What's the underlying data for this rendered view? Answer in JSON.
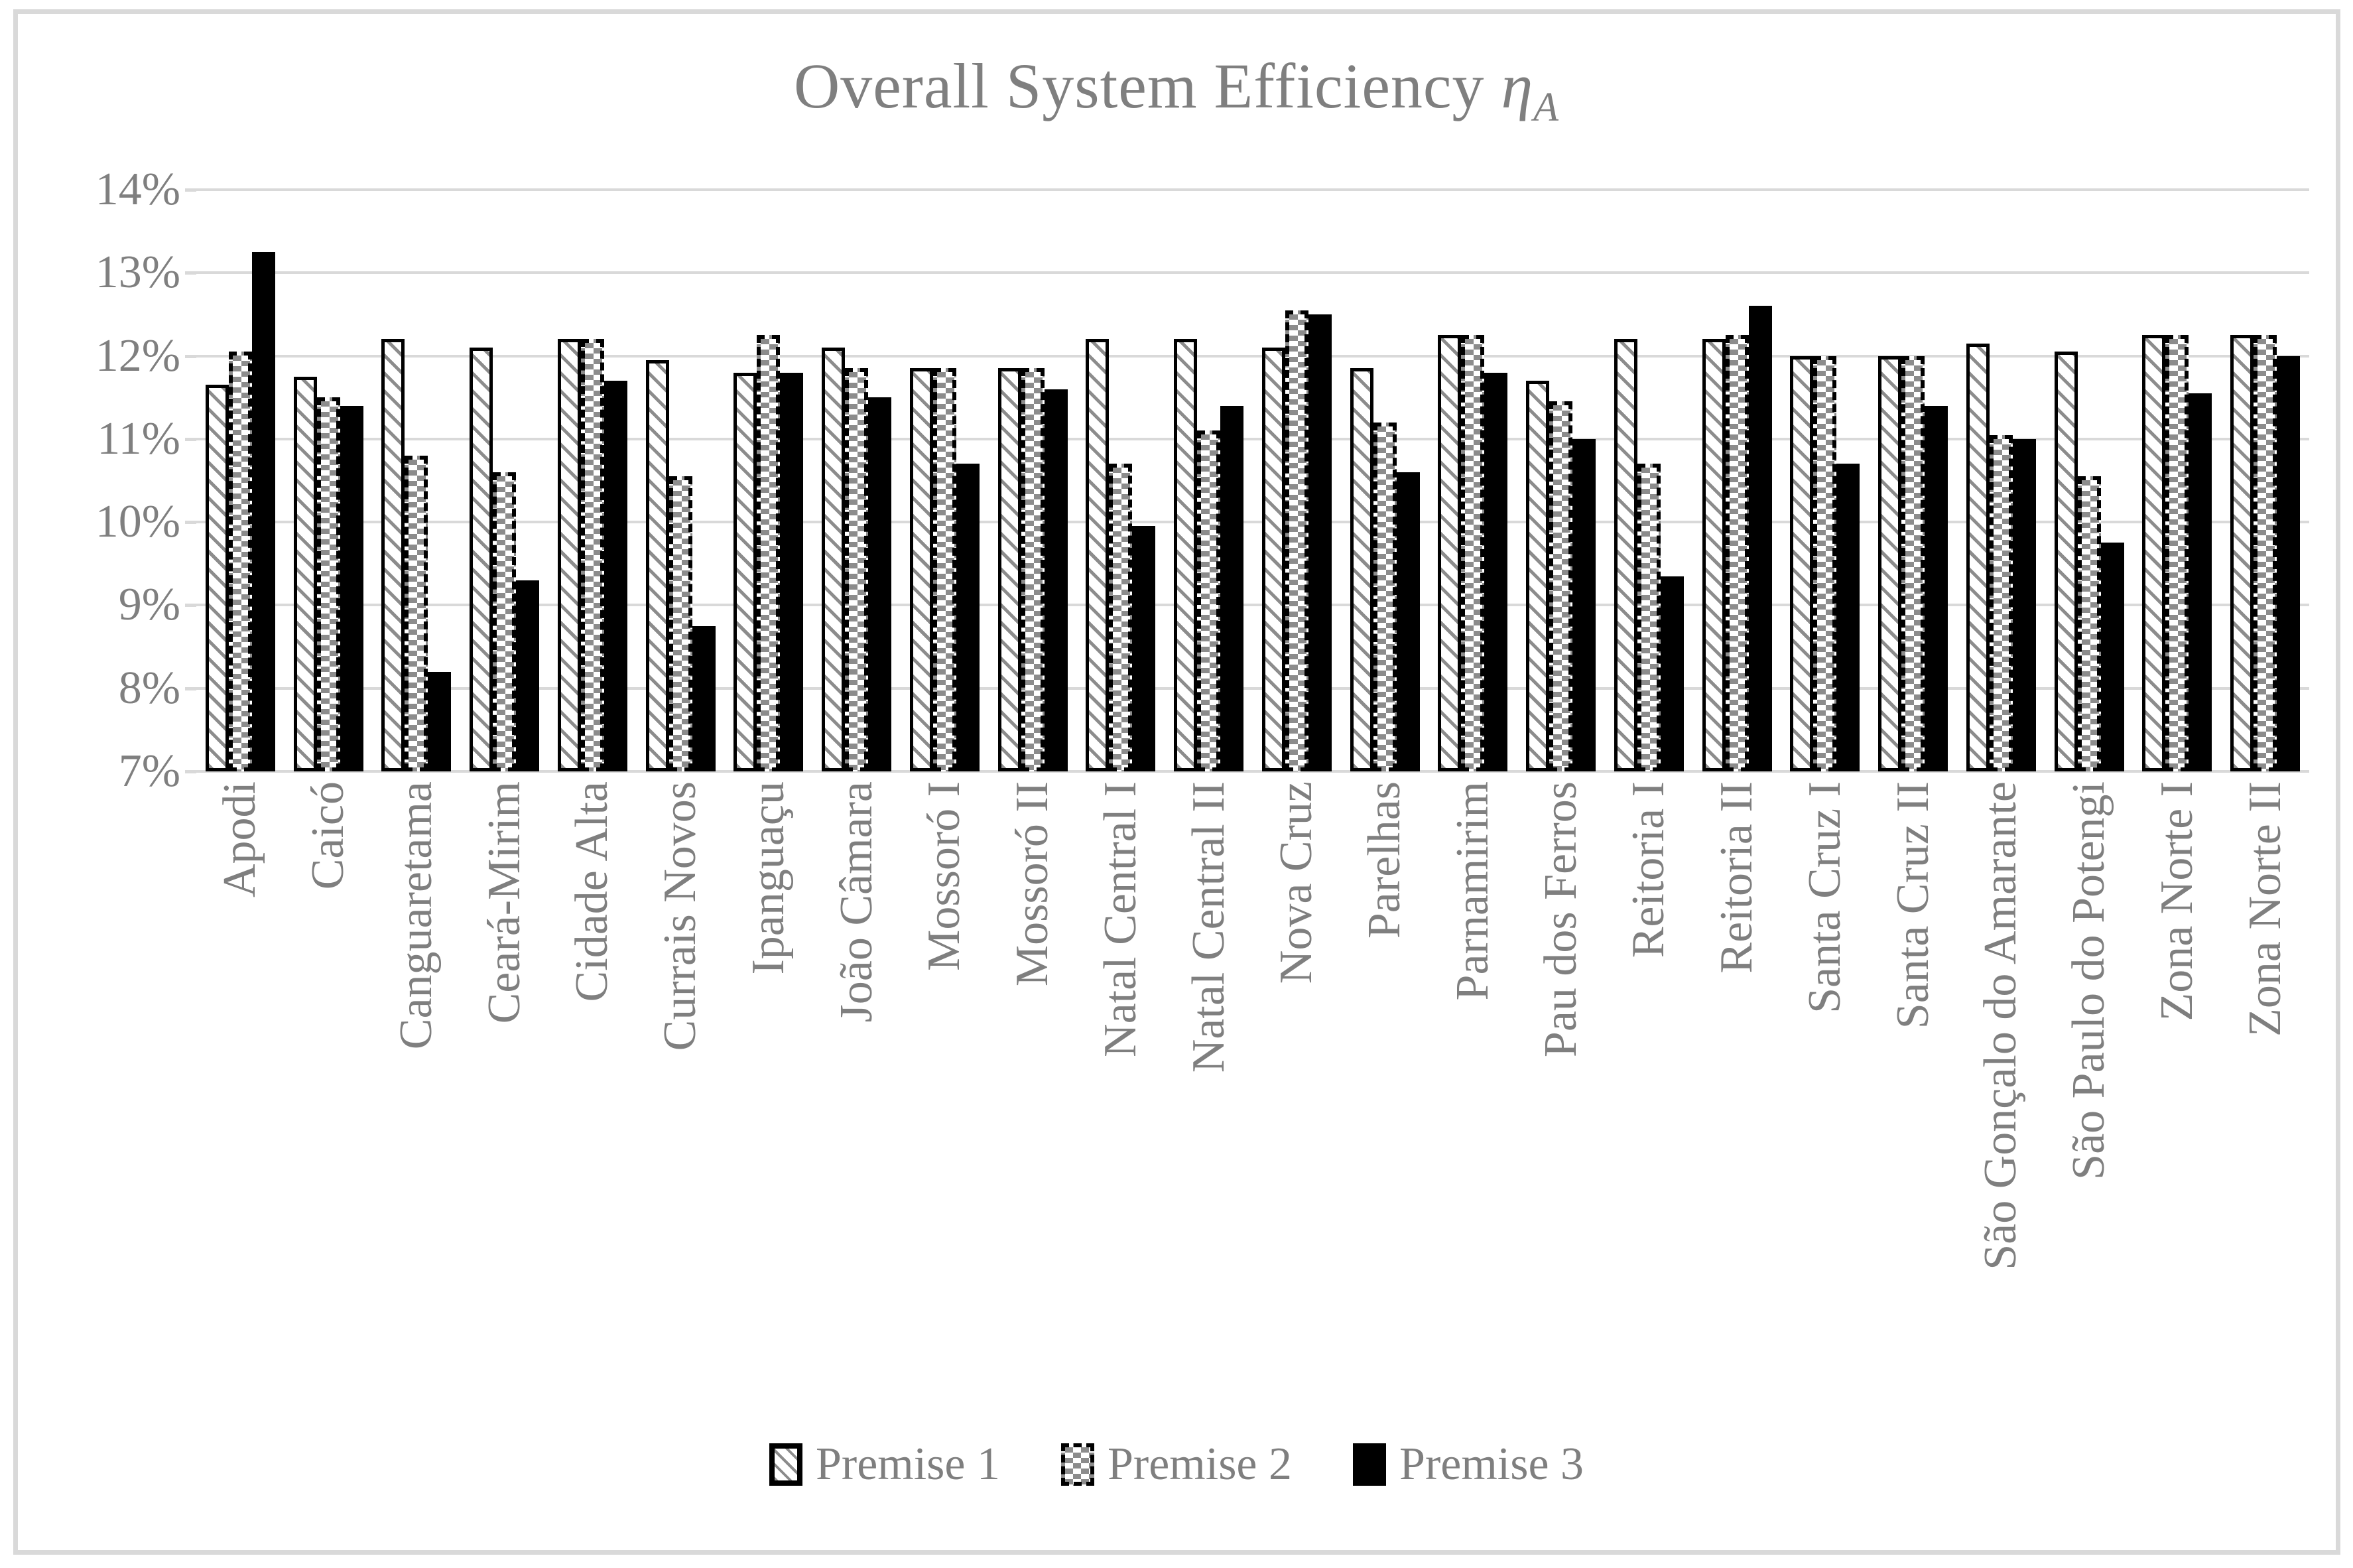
{
  "title": {
    "text": "Overall System Efficiency",
    "symbol": "η",
    "symbol_sub": "A"
  },
  "colors": {
    "text_gray": "#7f7f7f",
    "gridline": "#d9d9d9",
    "frame_border": "#d9d9d9",
    "series2_gray": "#8c8c8c",
    "series3_black": "#000000",
    "background": "#ffffff"
  },
  "chart_data": {
    "type": "bar",
    "title": "Overall System Efficiency η_A",
    "xlabel": "",
    "ylabel": "",
    "ylim": [
      7,
      14
    ],
    "ytick_step": 1,
    "ytick_labels": [
      "7%",
      "8%",
      "9%",
      "10%",
      "11%",
      "12%",
      "13%",
      "14%"
    ],
    "grid": "horizontal",
    "legend_position": "bottom",
    "categories": [
      "Apodi",
      "Caicó",
      "Canguaretama",
      "Ceará-Mirim",
      "Cidade Alta",
      "Currais Novos",
      "Ipanguaçu",
      "João Câmara",
      "Mossoró I",
      "Mossoró II",
      "Natal Central I",
      "Natal Central II",
      "Nova Cruz",
      "Parelhas",
      "Parnamirim",
      "Pau dos Ferros",
      "Reitoria I",
      "Reitoria II",
      "Santa Cruz I",
      "Santa Cruz II",
      "São Gonçalo do Amarante",
      "São Paulo do Potengi",
      "Zona Norte I",
      "Zona Norte II"
    ],
    "series": [
      {
        "name": "Premise 1",
        "pattern": "white-diagonal-hatch-solid-outline",
        "values": [
          11.65,
          11.75,
          12.2,
          12.1,
          12.2,
          11.95,
          11.8,
          12.1,
          11.85,
          11.85,
          12.2,
          12.2,
          12.1,
          11.85,
          12.25,
          11.7,
          12.2,
          12.2,
          12.0,
          12.0,
          12.15,
          12.05,
          12.25,
          12.25
        ]
      },
      {
        "name": "Premise 2",
        "pattern": "gray-dash-checker-dashed-outline",
        "values": [
          12.05,
          11.5,
          10.8,
          10.6,
          12.2,
          10.55,
          12.25,
          11.85,
          11.85,
          11.85,
          10.7,
          11.1,
          12.55,
          11.2,
          12.25,
          11.45,
          10.7,
          12.25,
          12.0,
          12.0,
          11.05,
          10.55,
          12.25,
          12.25
        ]
      },
      {
        "name": "Premise 3",
        "pattern": "solid-black",
        "values": [
          13.25,
          11.4,
          8.2,
          9.3,
          11.7,
          8.75,
          11.8,
          11.5,
          10.7,
          11.6,
          9.95,
          11.4,
          12.5,
          10.6,
          11.8,
          11.0,
          9.35,
          12.6,
          10.7,
          11.4,
          11.0,
          9.75,
          11.55,
          12.0
        ]
      }
    ]
  }
}
